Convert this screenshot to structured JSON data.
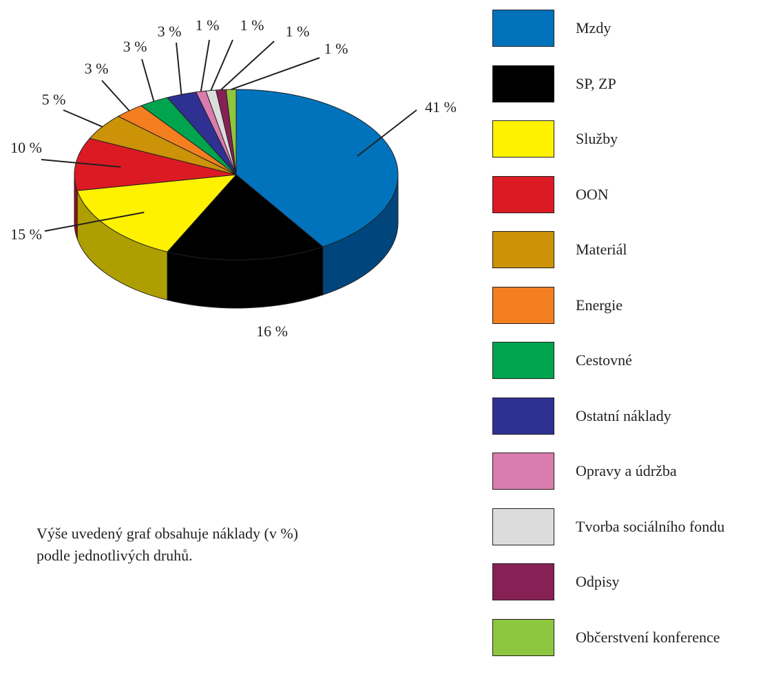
{
  "chart_data": {
    "type": "pie",
    "style": "3d",
    "categories": [
      "Mzdy",
      "SP, ZP",
      "Služby",
      "OON",
      "Materiál",
      "Energie",
      "Cestovné",
      "Ostatní náklady",
      "Opravy a údržba",
      "Tvorba sociálního fondu",
      "Odpisy",
      "Občerstvení konference"
    ],
    "values": [
      41,
      16,
      15,
      10,
      5,
      3,
      3,
      3,
      1,
      1,
      1,
      1
    ],
    "labels": [
      "41 %",
      "16 %",
      "15 %",
      "10 %",
      "5 %",
      "3 %",
      "3 %",
      "3 %",
      "1 %",
      "1 %",
      "1 %",
      "1 %"
    ],
    "colors": [
      "#0073bc",
      "#000000",
      "#fff200",
      "#db1a23",
      "#cc9208",
      "#f37f21",
      "#00a44e",
      "#2e3192",
      "#da7cae",
      "#dcdcdc",
      "#862055",
      "#8dc63f"
    ],
    "side_colors": [
      "#00467c",
      "#000000",
      "#ad9f00",
      "#9e0d14",
      "#8f6400",
      "#b35a10",
      "#006b30",
      "#1c1e63",
      "#a85a82",
      "#a0a0a0",
      "#5a1338",
      "#5e8a26"
    ],
    "legend_position": "right"
  },
  "note": {
    "line1": "Výše uvedený graf obsahuje náklady (v %)",
    "line2": "podle jednotlivých druhů."
  }
}
